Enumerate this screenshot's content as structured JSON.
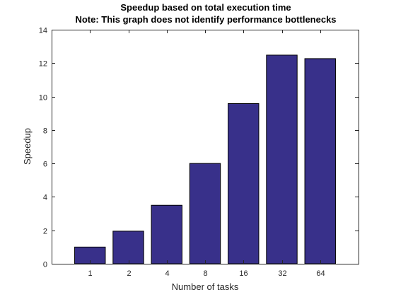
{
  "chart_data": {
    "type": "bar",
    "title": "Speedup based on total execution time",
    "subtitle": "Note: This graph does not identify performance bottlenecks",
    "xlabel": "Number of tasks",
    "ylabel": "Speedup",
    "categories": [
      "1",
      "2",
      "4",
      "8",
      "16",
      "32",
      "64"
    ],
    "values": [
      1.0,
      1.95,
      3.5,
      6.0,
      9.58,
      12.48,
      12.27
    ],
    "ylim": [
      0,
      14
    ],
    "yticks": [
      0,
      2,
      4,
      6,
      8,
      10,
      12,
      14
    ],
    "grid": false,
    "bar_color": "#38308a"
  }
}
